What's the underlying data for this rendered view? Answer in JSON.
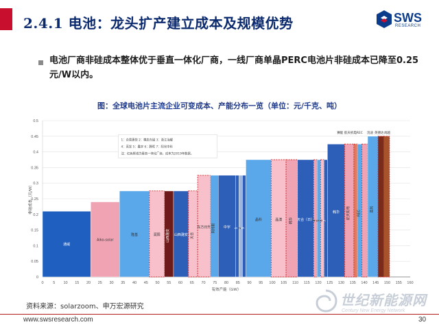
{
  "header": {
    "title": "2.4.1 电池：龙头扩产建立成本及规模优势",
    "logo_text": "SWS",
    "logo_sub": "RESEARCH"
  },
  "summary": "电池厂商非硅成本整体优于垂直一体化厂商，一线厂商单晶PERC电池片非硅成本已降至0.25元/W以内。",
  "caption": "图：全球电池片主流企业可变成本、产能分布一览（单位：元/千克、吨）",
  "chart_data": {
    "type": "bar",
    "subtype": "variable-width supply curve",
    "ylabel": "非硅成本（元/W）",
    "xlabel": "有效产能（GW）",
    "ylim": [
      0,
      0.5
    ],
    "xlim": [
      0,
      160
    ],
    "yticks": [
      "0",
      "0.05",
      "0.1",
      "0.15",
      "0.2",
      "0.25",
      "0.3",
      "0.35",
      "0.4",
      "0.45",
      "0.5"
    ],
    "xticks": [
      "0",
      "5",
      "10",
      "15",
      "20",
      "25",
      "30",
      "35",
      "40",
      "45",
      "50",
      "55",
      "60",
      "65",
      "70",
      "75",
      "80",
      "85",
      "90",
      "95",
      "100",
      "105",
      "110",
      "115",
      "120",
      "125",
      "130",
      "135",
      "140",
      "145",
      "150",
      "155",
      "160"
    ],
    "legend_lines": [
      "1：合景惠悦 2：横店东磁 3：浙江海耀",
      "4：英发 5：鑫宇 6：腾晖 7：阳光中科",
      "注：红色框线为垂直一体化厂商，成本为2019年数据。"
    ],
    "bars": [
      {
        "label": "通威",
        "x0": 0,
        "x1": 21,
        "y": 0.21,
        "color": "#1f5fbf",
        "integrated": false
      },
      {
        "label": "Aiko-solar",
        "x0": 21,
        "x1": 33.5,
        "y": 0.24,
        "color": "#f0a3b3",
        "integrated": false
      },
      {
        "label": "隆基",
        "x0": 33.5,
        "x1": 46.5,
        "y": 0.275,
        "color": "#5aa7ea",
        "integrated": false
      },
      {
        "label": "润阳",
        "x0": 46.5,
        "x1": 53,
        "y": 0.275,
        "color": "#f7c0cb",
        "integrated": true
      },
      {
        "label": "山西潞安",
        "x0": 53,
        "x1": 57,
        "y": 0.275,
        "color": "#6e1a1a",
        "integrated": false
      },
      {
        "label": "山西潞安",
        "x0": 57,
        "x1": 63.5,
        "y": 0.275,
        "color": "#2d5fb8",
        "integrated": false
      },
      {
        "label": "天合",
        "x0": 63.5,
        "x1": 67.5,
        "y": 0.275,
        "color": "#f7c0cb",
        "integrated": true
      },
      {
        "label": "东方日升",
        "x0": 67.5,
        "x1": 73,
        "y": 0.325,
        "color": "#f7c0cb",
        "integrated": true
      },
      {
        "label": "阿特斯",
        "x0": 73,
        "x1": 76.5,
        "y": 0.325,
        "color": "#5aa7ea",
        "integrated": false
      },
      {
        "label": "中宇",
        "x0": 76.5,
        "x1": 84,
        "y": 0.325,
        "color": "#2d5fb8",
        "integrated": false
      },
      {
        "label": "1",
        "x0": 84,
        "x1": 85.5,
        "y": 0.325,
        "color": "#2d5fb8",
        "integrated": false
      },
      {
        "label": "2",
        "x0": 85.5,
        "x1": 87,
        "y": 0.325,
        "color": "#9db6e0",
        "integrated": false
      },
      {
        "label": "3",
        "x0": 87,
        "x1": 88.5,
        "y": 0.325,
        "color": "#2d5fb8",
        "integrated": false
      },
      {
        "label": "晶科",
        "x0": 88.5,
        "x1": 99.5,
        "y": 0.375,
        "color": "#5aa7ea",
        "integrated": false
      },
      {
        "label": "晶澳",
        "x0": 99.5,
        "x1": 106,
        "y": 0.375,
        "color": "#f7c0cb",
        "integrated": true
      },
      {
        "label": "韩华",
        "x0": 106,
        "x1": 111,
        "y": 0.375,
        "color": "#f0a3b3",
        "integrated": true
      },
      {
        "label": "天合（日）",
        "x0": 111,
        "x1": 118,
        "y": 0.375,
        "color": "#2d5fb8",
        "integrated": false
      },
      {
        "label": "4",
        "x0": 118,
        "x1": 119.5,
        "y": 0.375,
        "color": "#f0a3b3",
        "integrated": true
      },
      {
        "label": "5",
        "x0": 119.5,
        "x1": 121,
        "y": 0.375,
        "color": "#5aa7ea",
        "integrated": false
      },
      {
        "label": "6",
        "x0": 121,
        "x1": 122.5,
        "y": 0.375,
        "color": "#f7c0cb",
        "integrated": true
      },
      {
        "label": "7",
        "x0": 122.5,
        "x1": 124,
        "y": 0.375,
        "color": "#2d5fb8",
        "integrated": false
      },
      {
        "label": "韩华",
        "x0": 124,
        "x1": 131.5,
        "y": 0.425,
        "color": "#2d5fb8",
        "integrated": false
      },
      {
        "label": "航天机电",
        "x0": 131.5,
        "x1": 135.5,
        "y": 0.425,
        "color": "#f0a3b3",
        "integrated": true
      },
      {
        "label": "",
        "x0": 135.5,
        "x1": 137,
        "y": 0.425,
        "color": "#e07a5f",
        "integrated": true
      },
      {
        "label": "REC",
        "x0": 137,
        "x1": 139,
        "y": 0.425,
        "color": "#5aa7ea",
        "integrated": false
      },
      {
        "label": "",
        "x0": 139,
        "x1": 141.5,
        "y": 0.425,
        "color": "#f0a3b3",
        "integrated": true
      },
      {
        "label": "英利",
        "x0": 141.5,
        "x1": 146,
        "y": 0.45,
        "color": "#5aa7ea",
        "integrated": false
      },
      {
        "label": "",
        "x0": 146,
        "x1": 148.5,
        "y": 0.45,
        "color": "#7a2b1a",
        "integrated": true
      },
      {
        "label": "",
        "x0": 148.5,
        "x1": 151,
        "y": 0.45,
        "color": "#a8532c",
        "integrated": true
      }
    ],
    "top_labels": [
      {
        "text": "赛能",
        "x": 129.5
      },
      {
        "text": "航天机电",
        "x": 134
      },
      {
        "text": "REC",
        "x": 138
      },
      {
        "text": "浣迪",
        "x": 142.5
      },
      {
        "text": "英德达",
        "x": 146.5
      },
      {
        "text": "尚越",
        "x": 150
      }
    ]
  },
  "source": "资料来源：solarzoom、申万宏源研究",
  "footer": {
    "url": "www.swsresearch.com",
    "page": "30"
  },
  "watermark": {
    "cn": "世纪新能源网",
    "en": "Century New Energy Network"
  }
}
